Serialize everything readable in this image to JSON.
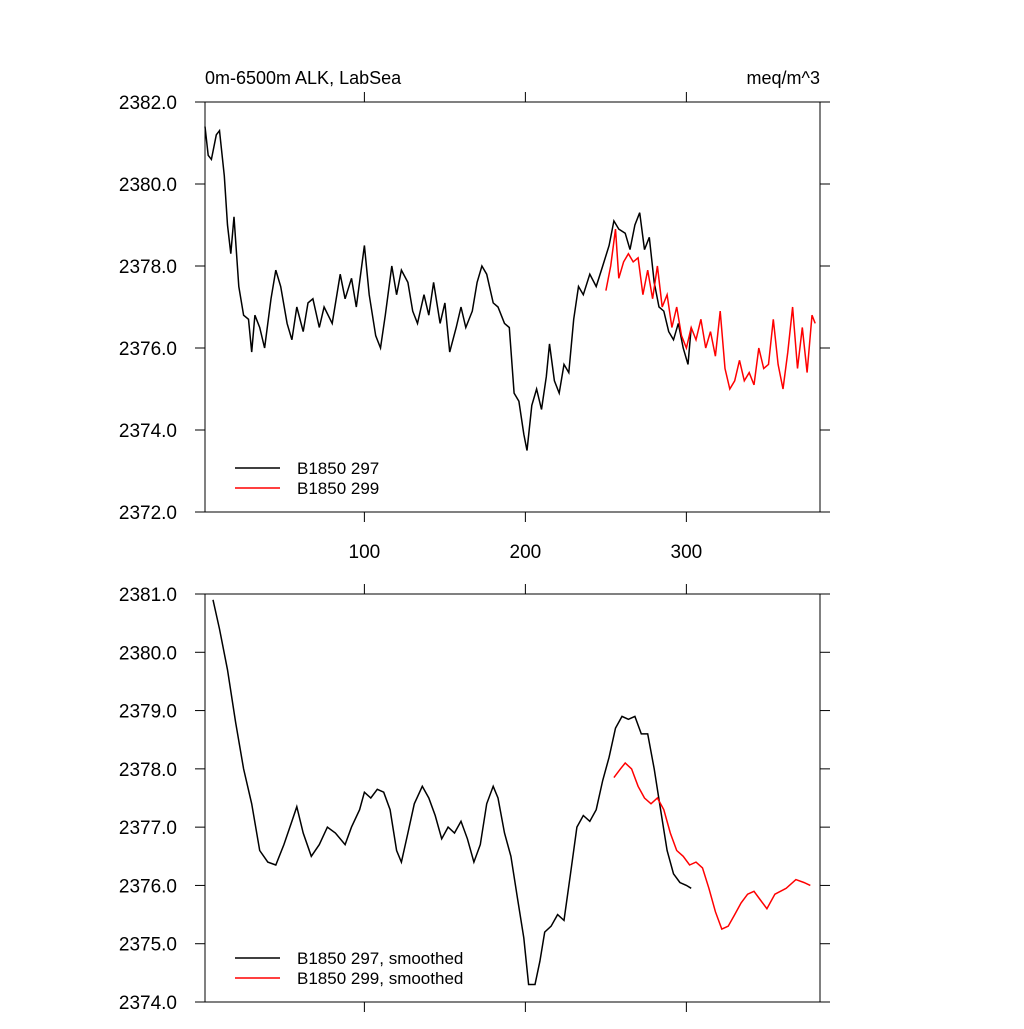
{
  "chart_data": [
    {
      "type": "line",
      "title": "0m-6500m ALK, LabSea",
      "units": "meq/m^3",
      "xlim": [
        1,
        383
      ],
      "xticks": [
        100,
        200,
        300
      ],
      "ylim": [
        2372,
        2382
      ],
      "yticks": [
        {
          "value": 2372,
          "label": "2372.0"
        },
        {
          "value": 2374,
          "label": "2374.0"
        },
        {
          "value": 2376,
          "label": "2376.0"
        },
        {
          "value": 2378,
          "label": "2378.0"
        },
        {
          "value": 2380,
          "label": "2380.0"
        },
        {
          "value": 2382,
          "label": "2382.0"
        }
      ],
      "legend": "lower left",
      "series": [
        {
          "name": "B1850 297",
          "color": "#000000",
          "x": [
            1,
            3,
            5,
            8,
            10,
            13,
            15,
            17,
            19,
            22,
            25,
            28,
            30,
            32,
            35,
            38,
            42,
            45,
            48,
            52,
            55,
            58,
            62,
            65,
            68,
            72,
            75,
            80,
            85,
            88,
            92,
            95,
            100,
            103,
            107,
            110,
            113,
            117,
            120,
            123,
            127,
            130,
            133,
            137,
            140,
            143,
            147,
            150,
            153,
            157,
            160,
            163,
            167,
            170,
            173,
            176,
            180,
            183,
            187,
            190,
            193,
            196,
            199,
            201,
            204,
            207,
            210,
            213,
            215,
            218,
            221,
            224,
            227,
            230,
            233,
            236,
            240,
            244,
            248,
            252,
            255,
            258,
            262,
            265,
            268,
            271,
            274,
            277,
            280,
            283,
            286,
            289,
            292,
            295,
            298,
            301,
            303
          ],
          "values": [
            2381.4,
            2380.7,
            2380.6,
            2381.2,
            2381.3,
            2380.2,
            2379.0,
            2378.3,
            2379.2,
            2377.5,
            2376.8,
            2376.7,
            2375.9,
            2376.8,
            2376.5,
            2376.0,
            2377.2,
            2377.9,
            2377.5,
            2376.6,
            2376.2,
            2377.0,
            2376.4,
            2377.1,
            2377.2,
            2376.5,
            2377.0,
            2376.6,
            2377.8,
            2377.2,
            2377.7,
            2377.0,
            2378.5,
            2377.3,
            2376.3,
            2376.0,
            2376.8,
            2378.0,
            2377.3,
            2377.9,
            2377.6,
            2376.9,
            2376.6,
            2377.3,
            2376.8,
            2377.6,
            2376.6,
            2377.1,
            2375.9,
            2376.5,
            2377.0,
            2376.5,
            2376.9,
            2377.6,
            2378.0,
            2377.8,
            2377.1,
            2377.0,
            2376.6,
            2376.5,
            2374.9,
            2374.7,
            2373.9,
            2373.5,
            2374.6,
            2375.0,
            2374.5,
            2375.3,
            2376.1,
            2375.2,
            2374.9,
            2375.6,
            2375.4,
            2376.7,
            2377.5,
            2377.3,
            2377.8,
            2377.5,
            2378.0,
            2378.5,
            2379.1,
            2378.9,
            2378.8,
            2378.4,
            2379.0,
            2379.3,
            2378.4,
            2378.7,
            2377.6,
            2377.0,
            2376.9,
            2376.4,
            2376.2,
            2376.6,
            2376.0,
            2375.6,
            2376.5
          ]
        },
        {
          "name": "B1850 299",
          "color": "#ff0000",
          "x": [
            250,
            253,
            256,
            258,
            261,
            264,
            267,
            270,
            273,
            276,
            279,
            282,
            285,
            288,
            291,
            294,
            297,
            300,
            303,
            306,
            309,
            312,
            315,
            318,
            321,
            324,
            327,
            330,
            333,
            336,
            339,
            342,
            345,
            348,
            351,
            354,
            357,
            360,
            363,
            366,
            369,
            372,
            375,
            378,
            380
          ],
          "values": [
            2377.4,
            2378.0,
            2378.9,
            2377.7,
            2378.1,
            2378.3,
            2378.1,
            2378.2,
            2377.3,
            2377.9,
            2377.2,
            2378.0,
            2377.0,
            2377.3,
            2376.5,
            2377.0,
            2376.3,
            2376.0,
            2376.5,
            2376.2,
            2376.7,
            2376.0,
            2376.4,
            2375.8,
            2376.9,
            2375.5,
            2375.0,
            2375.2,
            2375.7,
            2375.2,
            2375.4,
            2375.1,
            2376.0,
            2375.5,
            2375.6,
            2376.7,
            2375.6,
            2375.0,
            2375.9,
            2377.0,
            2375.5,
            2376.5,
            2375.4,
            2376.8,
            2376.6
          ]
        }
      ]
    },
    {
      "type": "line",
      "xlim": [
        1,
        383
      ],
      "ylim": [
        2374,
        2381
      ],
      "yticks": [
        {
          "value": 2374,
          "label": "2374.0"
        },
        {
          "value": 2375,
          "label": "2375.0"
        },
        {
          "value": 2376,
          "label": "2376.0"
        },
        {
          "value": 2377,
          "label": "2377.0"
        },
        {
          "value": 2378,
          "label": "2378.0"
        },
        {
          "value": 2379,
          "label": "2379.0"
        },
        {
          "value": 2380,
          "label": "2380.0"
        },
        {
          "value": 2381,
          "label": "2381.0"
        }
      ],
      "legend": "lower left",
      "series": [
        {
          "name": "B1850 297, smoothed",
          "color": "#000000",
          "x": [
            6,
            10,
            15,
            20,
            25,
            30,
            35,
            40,
            45,
            50,
            55,
            58,
            62,
            67,
            72,
            77,
            82,
            88,
            92,
            97,
            100,
            104,
            108,
            112,
            116,
            120,
            123,
            127,
            131,
            136,
            140,
            144,
            148,
            152,
            156,
            160,
            164,
            168,
            172,
            176,
            180,
            183,
            187,
            191,
            195,
            199,
            202,
            206,
            209,
            212,
            216,
            220,
            224,
            228,
            232,
            236,
            240,
            244,
            248,
            252,
            256,
            260,
            264,
            268,
            272,
            276,
            280,
            284,
            288,
            292,
            296,
            300,
            303
          ],
          "values": [
            2380.9,
            2380.4,
            2379.7,
            2378.8,
            2378.0,
            2377.4,
            2376.6,
            2376.4,
            2376.35,
            2376.7,
            2377.1,
            2377.35,
            2376.9,
            2376.5,
            2376.7,
            2377.0,
            2376.9,
            2376.7,
            2377.0,
            2377.3,
            2377.6,
            2377.5,
            2377.65,
            2377.6,
            2377.3,
            2376.6,
            2376.4,
            2376.9,
            2377.4,
            2377.7,
            2377.5,
            2377.2,
            2376.8,
            2377.0,
            2376.9,
            2377.1,
            2376.8,
            2376.4,
            2376.7,
            2377.4,
            2377.7,
            2377.5,
            2376.9,
            2376.5,
            2375.8,
            2375.1,
            2374.3,
            2374.3,
            2374.7,
            2375.2,
            2375.3,
            2375.5,
            2375.4,
            2376.2,
            2377.0,
            2377.2,
            2377.1,
            2377.3,
            2377.8,
            2378.2,
            2378.7,
            2378.9,
            2378.85,
            2378.9,
            2378.6,
            2378.6,
            2378.0,
            2377.3,
            2376.6,
            2376.2,
            2376.05,
            2376.0,
            2375.95
          ]
        },
        {
          "name": "B1850 299, smoothed",
          "color": "#ff0000",
          "x": [
            255,
            259,
            262,
            266,
            270,
            274,
            278,
            282,
            286,
            290,
            294,
            298,
            302,
            306,
            310,
            314,
            318,
            322,
            326,
            330,
            334,
            338,
            342,
            346,
            350,
            355,
            362,
            368,
            373,
            377
          ],
          "values": [
            2377.85,
            2378.0,
            2378.1,
            2378.0,
            2377.7,
            2377.5,
            2377.4,
            2377.5,
            2377.3,
            2376.9,
            2376.6,
            2376.5,
            2376.35,
            2376.4,
            2376.3,
            2375.95,
            2375.55,
            2375.25,
            2375.3,
            2375.5,
            2375.7,
            2375.85,
            2375.9,
            2375.75,
            2375.6,
            2375.85,
            2375.95,
            2376.1,
            2376.05,
            2376.0
          ]
        }
      ]
    }
  ]
}
